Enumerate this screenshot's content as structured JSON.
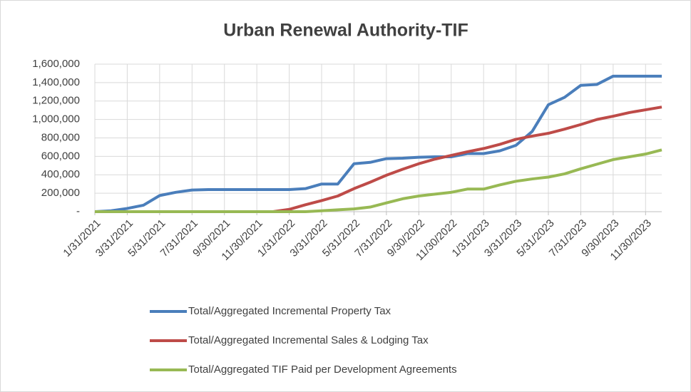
{
  "chart_data": {
    "type": "line",
    "title": "Urban Renewal Authority-TIF",
    "categories": [
      "1/31/2021",
      null,
      "3/31/2021",
      null,
      "5/31/2021",
      null,
      "7/31/2021",
      null,
      "9/30/2021",
      null,
      "11/30/2021",
      null,
      "1/31/2022",
      null,
      "3/31/2022",
      null,
      "5/31/2022",
      null,
      "7/31/2022",
      null,
      "9/30/2022",
      null,
      "11/30/2022",
      null,
      "1/31/2023",
      null,
      "3/31/2023",
      null,
      "5/31/2023",
      null,
      "7/31/2023",
      null,
      "9/30/2023",
      null,
      "11/30/2023",
      null
    ],
    "series": [
      {
        "name": "Total/Aggregated Incremental Property Tax",
        "color": "#4a7ebb",
        "values": [
          0,
          10000,
          35000,
          70000,
          175000,
          210000,
          235000,
          240000,
          240000,
          240000,
          240000,
          240000,
          240000,
          250000,
          300000,
          300000,
          520000,
          535000,
          575000,
          580000,
          590000,
          595000,
          595000,
          630000,
          630000,
          660000,
          720000,
          870000,
          1160000,
          1240000,
          1370000,
          1380000,
          1470000,
          1470000,
          1470000,
          1470000
        ]
      },
      {
        "name": "Total/Aggregated Incremental Sales & Lodging Tax",
        "color": "#be4b48",
        "values": [
          0,
          0,
          0,
          0,
          0,
          0,
          0,
          0,
          0,
          0,
          0,
          0,
          25000,
          75000,
          120000,
          170000,
          250000,
          320000,
          395000,
          460000,
          520000,
          570000,
          610000,
          650000,
          685000,
          730000,
          785000,
          820000,
          850000,
          895000,
          945000,
          1000000,
          1035000,
          1075000,
          1105000,
          1135000
        ]
      },
      {
        "name": "Total/Aggregated TIF Paid per Development Agreements",
        "color": "#98b954",
        "values": [
          0,
          0,
          0,
          0,
          0,
          0,
          0,
          0,
          0,
          0,
          0,
          0,
          0,
          0,
          10000,
          20000,
          30000,
          50000,
          95000,
          140000,
          170000,
          190000,
          210000,
          245000,
          245000,
          290000,
          330000,
          355000,
          375000,
          410000,
          465000,
          515000,
          565000,
          595000,
          625000,
          670000
        ]
      }
    ],
    "ylim": [
      0,
      1600000
    ],
    "yticks": [
      {
        "value": 0,
        "label": "-"
      },
      {
        "value": 200000,
        "label": "200,000"
      },
      {
        "value": 400000,
        "label": "400,000"
      },
      {
        "value": 600000,
        "label": "600,000"
      },
      {
        "value": 800000,
        "label": "800,000"
      },
      {
        "value": 1000000,
        "label": "1,000,000"
      },
      {
        "value": 1200000,
        "label": "1,200,000"
      },
      {
        "value": 1400000,
        "label": "1,400,000"
      },
      {
        "value": 1600000,
        "label": "1,600,000"
      }
    ],
    "grid": true,
    "legend": "bottom"
  }
}
